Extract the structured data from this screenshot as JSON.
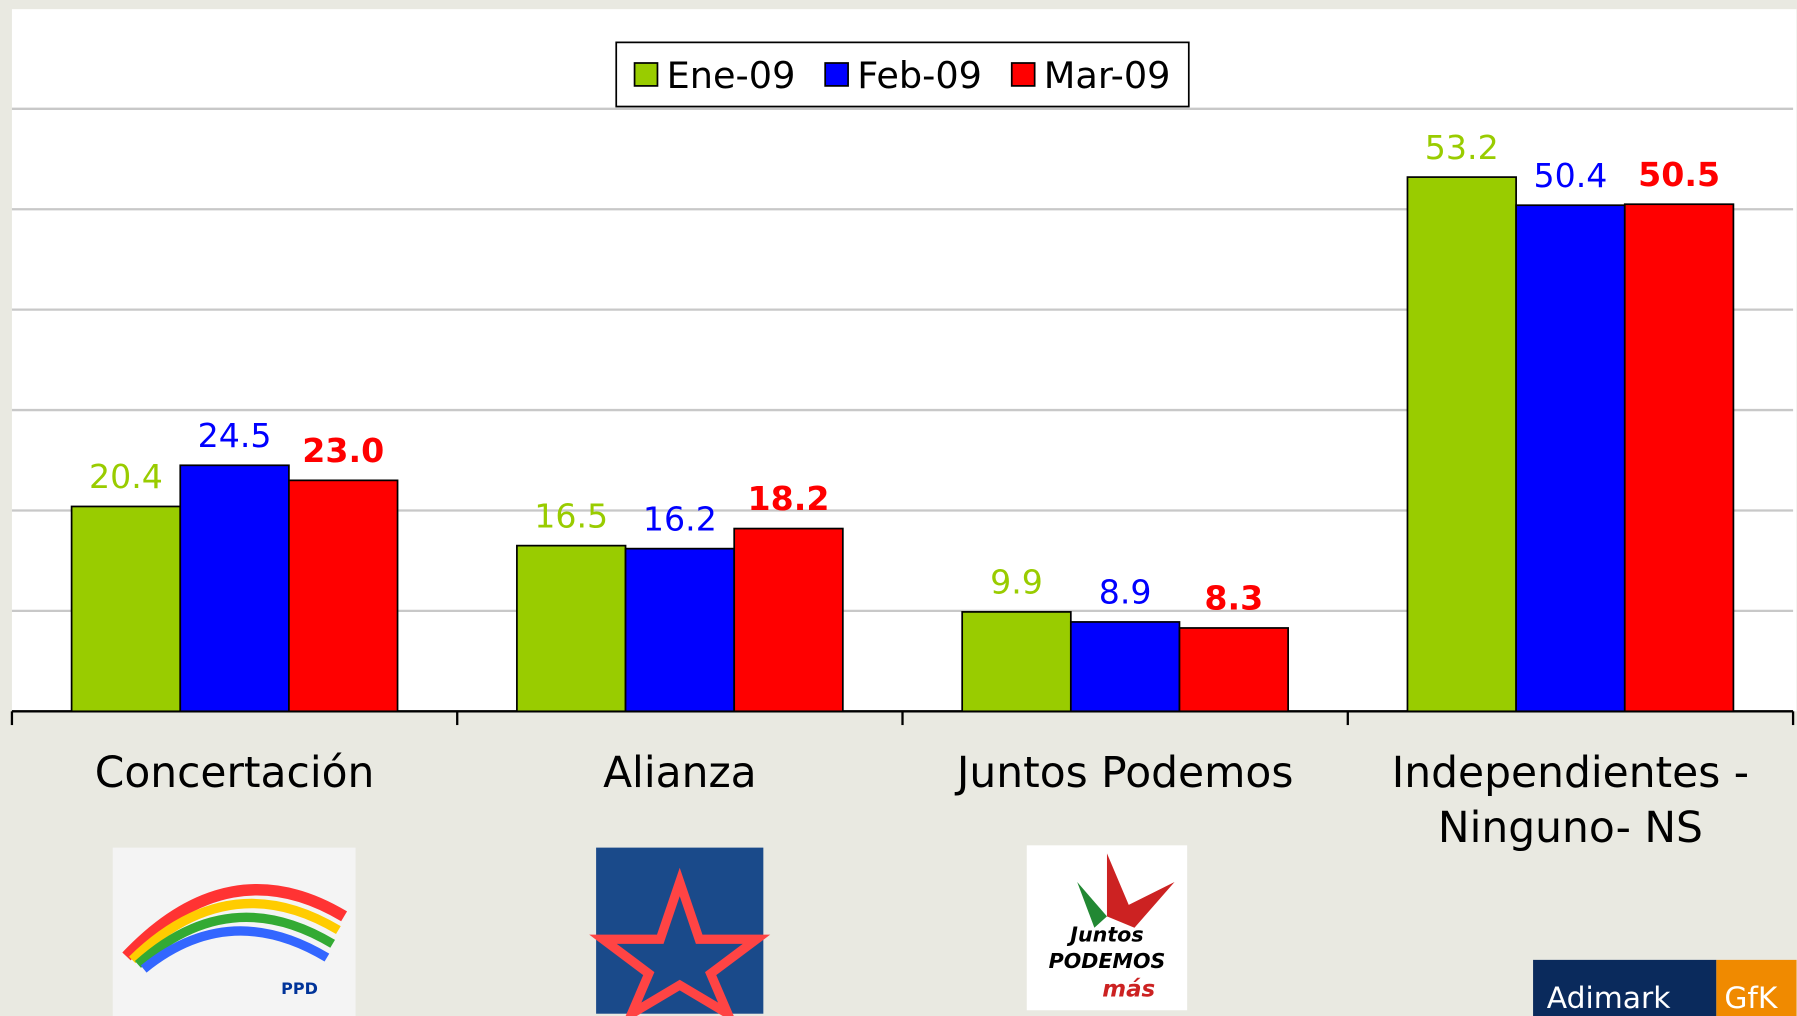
{
  "chart_data": {
    "type": "bar",
    "categories": [
      "Concertación",
      "Alianza",
      "Juntos Podemos",
      "Independientes - Ninguno- NS"
    ],
    "series": [
      {
        "name": "Ene-09",
        "color": "#99cc00",
        "values": [
          20.4,
          16.5,
          9.9,
          53.2
        ]
      },
      {
        "name": "Feb-09",
        "color": "#0000ff",
        "values": [
          24.5,
          16.2,
          8.9,
          50.4
        ]
      },
      {
        "name": "Mar-09",
        "color": "#ff0000",
        "values": [
          23.0,
          18.2,
          8.3,
          50.5
        ],
        "value_labels": [
          "23.0",
          "18.2",
          "8.3",
          "50.5"
        ]
      }
    ],
    "ylim": [
      0,
      60
    ],
    "yticks": [
      0,
      10,
      20,
      30,
      40,
      50,
      60
    ],
    "grid": true,
    "legend": "top"
  },
  "logos": {
    "concertacion": "PPD",
    "juntos_podemos": [
      "Juntos",
      "PODEMOS",
      "más"
    ],
    "footer": [
      "Adimark",
      "GfK"
    ]
  }
}
